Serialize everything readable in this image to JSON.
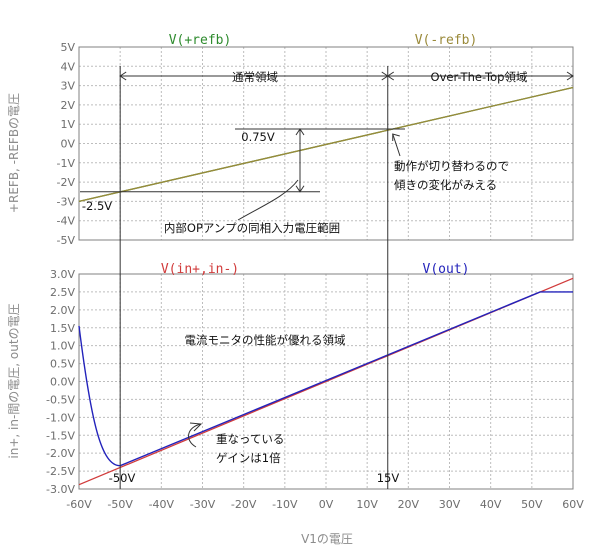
{
  "chart_data": [
    {
      "type": "line",
      "ylabel": "+REFB, -REFBの電圧",
      "ylim": [
        -5,
        5
      ],
      "yticks": [
        "5V",
        "4V",
        "3V",
        "2V",
        "1V",
        "0V",
        "-1V",
        "-2V",
        "-3V",
        "-4V",
        "-5V"
      ],
      "xlim": [
        -60,
        60
      ],
      "series": [
        {
          "name": "V(+refb)",
          "color": "#2e8b2e",
          "x": [
            -60,
            60
          ],
          "y": [
            -3.0,
            2.9
          ]
        },
        {
          "name": "V(-refb)",
          "color": "#9a8a3a",
          "x": [
            -60,
            60
          ],
          "y": [
            -3.0,
            2.9
          ]
        }
      ],
      "annotations": {
        "normal_region": "通常領域",
        "ott_region": "Over-The-Top領域",
        "level_high": "0.75V",
        "level_low": "-2.5V",
        "input_range": "内部OPアンプの同相入力電圧範囲",
        "switch_note_1": "動作が切り替わるので",
        "switch_note_2": "傾きの変化がみえる"
      }
    },
    {
      "type": "line",
      "xlabel": "V1の電圧",
      "ylabel": "in+, in-間の電圧, outの電圧",
      "ylim": [
        -3.0,
        3.0
      ],
      "yticks": [
        "3.0V",
        "2.5V",
        "2.0V",
        "1.5V",
        "1.0V",
        "0.5V",
        "0.0V",
        "-0.5V",
        "-1.0V",
        "-1.5V",
        "-2.0V",
        "-2.5V",
        "-3.0V"
      ],
      "xlim": [
        -60,
        60
      ],
      "xticks": [
        "-60V",
        "-50V",
        "-40V",
        "-30V",
        "-20V",
        "-10V",
        "0V",
        "10V",
        "20V",
        "30V",
        "40V",
        "50V",
        "60V"
      ],
      "series": [
        {
          "name": "V(in+,in-)",
          "color": "#d13b3b",
          "x": [
            -60,
            60
          ],
          "y": [
            -2.88,
            2.88
          ]
        },
        {
          "name": "V(out)",
          "color": "#2323bb",
          "x": [
            -60,
            -58,
            -56,
            -54,
            -52,
            -50,
            52,
            60
          ],
          "y": [
            1.55,
            -0.4,
            -1.55,
            -2.1,
            -2.3,
            -2.35,
            2.5,
            2.5
          ]
        }
      ],
      "annotations": {
        "monitor_region": "電流モニタの性能が優れる領域",
        "overlap_1": "重なっている",
        "overlap_2": "ゲインは1倍",
        "marker_left": "-50V",
        "marker_right": "15V"
      }
    }
  ]
}
